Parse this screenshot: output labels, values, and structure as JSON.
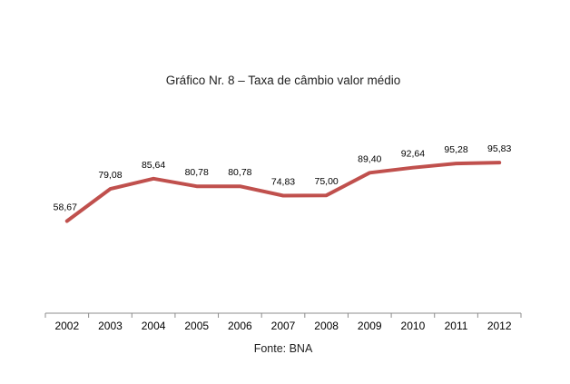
{
  "chart_data": {
    "type": "line",
    "title": "Gráfico Nr. 8 – Taxa de câmbio valor médio",
    "source_note": "Fonte: BNA",
    "categories": [
      "2002",
      "2003",
      "2004",
      "2005",
      "2006",
      "2007",
      "2008",
      "2009",
      "2010",
      "2011",
      "2012"
    ],
    "series": [
      {
        "values": [
          58.67,
          79.08,
          85.64,
          80.78,
          80.78,
          74.83,
          75.0,
          89.4,
          92.64,
          95.28,
          95.83
        ],
        "data_labels": [
          "58,67",
          "79,08",
          "85,64",
          "80,78",
          "80,78",
          "74,83",
          "75,00",
          "89,40",
          "92,64",
          "95,28",
          "95,83"
        ],
        "color": "#C0504D"
      }
    ],
    "ylim": [
      0,
      130
    ],
    "grid": false,
    "legend": "none",
    "xlabel": "",
    "ylabel": ""
  }
}
